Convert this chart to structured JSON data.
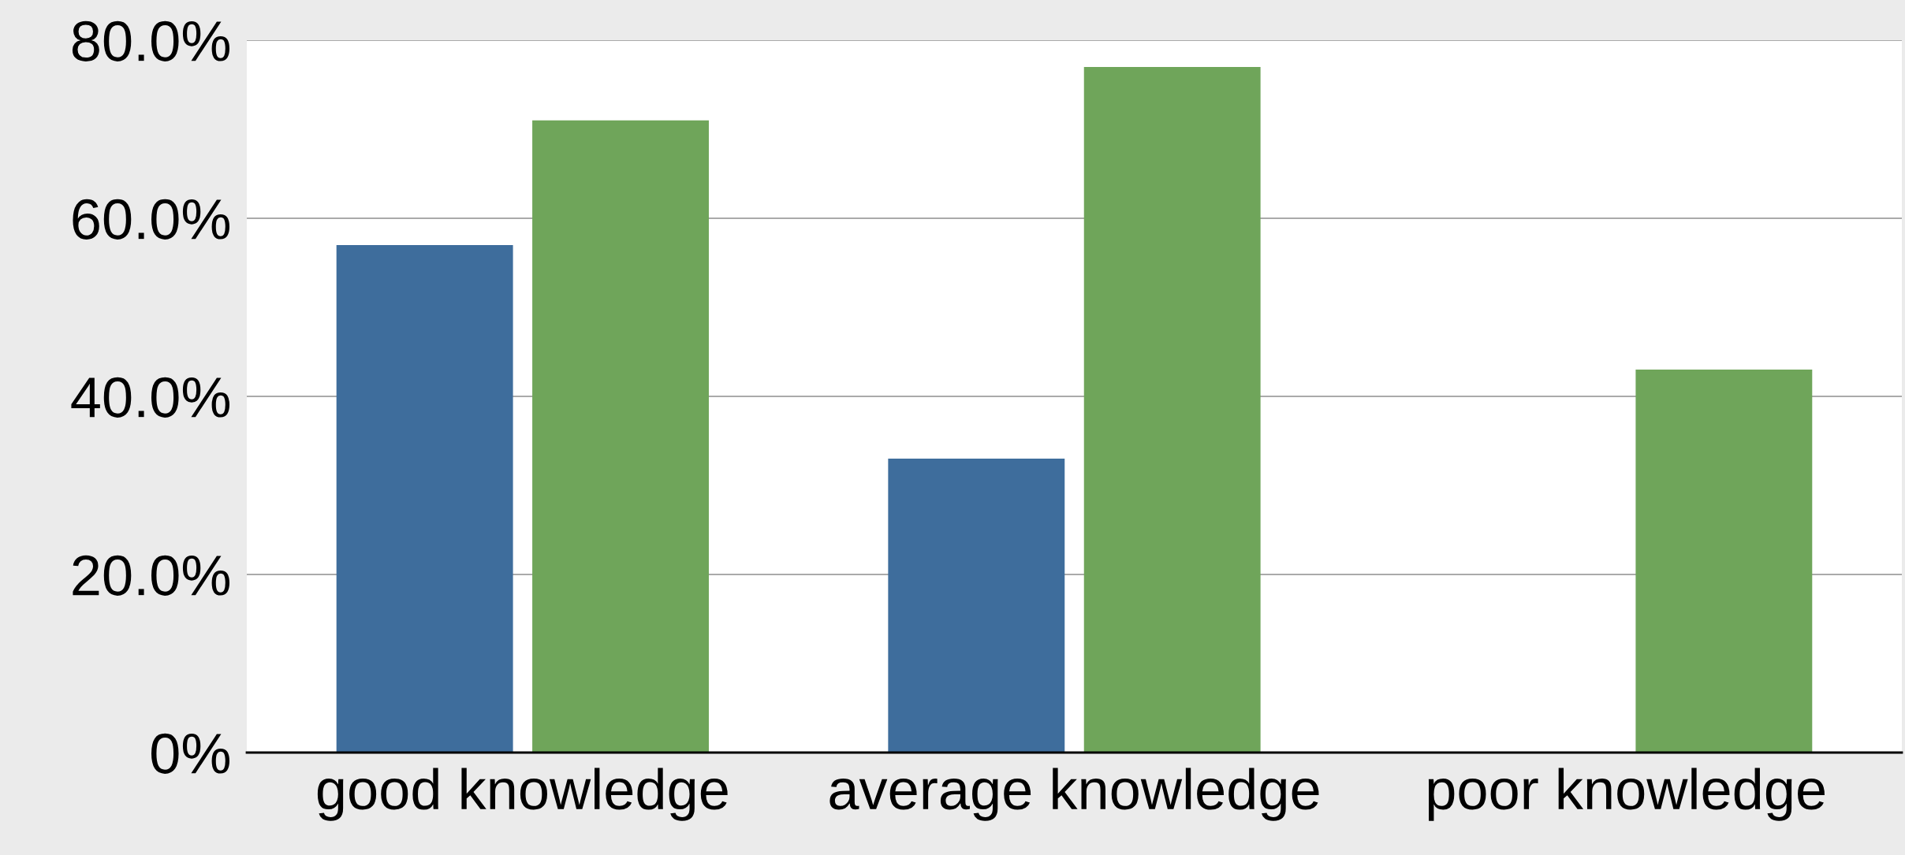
{
  "chart_data": {
    "type": "bar",
    "categories": [
      "good knowledge",
      "average knowledge",
      "poor knowledge"
    ],
    "series": [
      {
        "color": "#3e6d9c",
        "values": [
          57,
          33,
          null
        ]
      },
      {
        "color": "#6fa55a",
        "values": [
          71,
          77,
          43
        ]
      }
    ],
    "ylim": [
      0,
      80
    ],
    "yticks": [
      {
        "value": 0,
        "label": "0%"
      },
      {
        "value": 20,
        "label": "20.0%"
      },
      {
        "value": 40,
        "label": "40.0%"
      },
      {
        "value": 60,
        "label": "60.0%"
      },
      {
        "value": 80,
        "label": "80.0%"
      }
    ],
    "grid": "y",
    "legend": false
  }
}
